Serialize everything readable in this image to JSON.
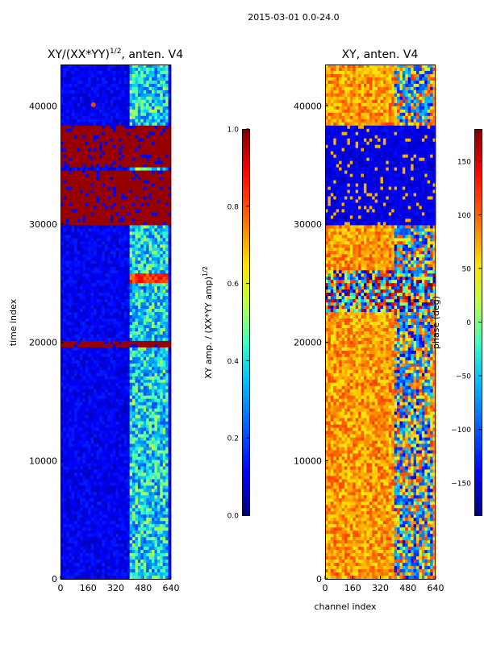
{
  "suptitle": "2015-03-01 0.0-24.0",
  "colors": {
    "deep_blue": "#00008f",
    "blue": "#0000ff",
    "dark_red": "#7f0000",
    "jet": [
      "#00007f",
      "#0000ff",
      "#007fff",
      "#00ffff",
      "#7fff7f",
      "#ffff00",
      "#ff7f00",
      "#ff0000",
      "#7f0000"
    ]
  },
  "chart_data": [
    {
      "type": "heatmap",
      "title_main": "XY/(XX*YY)",
      "title_sup": "1/2",
      "title_rest": ", anten. V4",
      "xlabel": "",
      "ylabel": "time index",
      "xlim": [
        0,
        640
      ],
      "ylim": [
        0,
        43500
      ],
      "xticks": [
        0,
        160,
        320,
        480,
        640
      ],
      "yticks": [
        0,
        10000,
        20000,
        30000,
        40000
      ],
      "colorbar": {
        "label_main": "XY amp. / (XX*YY amp)",
        "label_sup": "1/2",
        "range": [
          0.0,
          1.0
        ],
        "ticks": [
          "0.0",
          "0.2",
          "0.4",
          "0.6",
          "0.8",
          "1.0"
        ],
        "tick_values": [
          0.0,
          0.2,
          0.4,
          0.6,
          0.8,
          1.0
        ]
      },
      "saturated_time_bands": [
        [
          30000,
          34500
        ],
        [
          34800,
          38200
        ],
        [
          19700,
          20200
        ]
      ],
      "bright_spot": {
        "channel": 190,
        "time": 40100,
        "value": 1.0
      },
      "hot_patch": {
        "channels": [
          400,
          620
        ],
        "times": [
          25000,
          25800
        ],
        "value": 0.9
      },
      "active_channel_range": [
        400,
        620
      ]
    },
    {
      "type": "heatmap",
      "title_main": "XY, anten. V4",
      "xlabel": "channel index",
      "ylabel": "",
      "xlim": [
        0,
        640
      ],
      "ylim": [
        0,
        43500
      ],
      "xticks": [
        0,
        160,
        320,
        480,
        640
      ],
      "yticks": [
        0,
        10000,
        20000,
        30000,
        40000
      ],
      "colorbar": {
        "label": "phase (deg)",
        "range": [
          -180,
          180
        ],
        "ticks": [
          "−150",
          "−100",
          "−50",
          "0",
          "50",
          "100",
          "150"
        ],
        "tick_values": [
          -150,
          -100,
          -50,
          0,
          50,
          100,
          150
        ]
      },
      "noisy_time_band": [
        22500,
        26000
      ],
      "dark_blue_band": [
        30000,
        38300
      ],
      "active_channel_range": [
        400,
        620
      ]
    }
  ]
}
